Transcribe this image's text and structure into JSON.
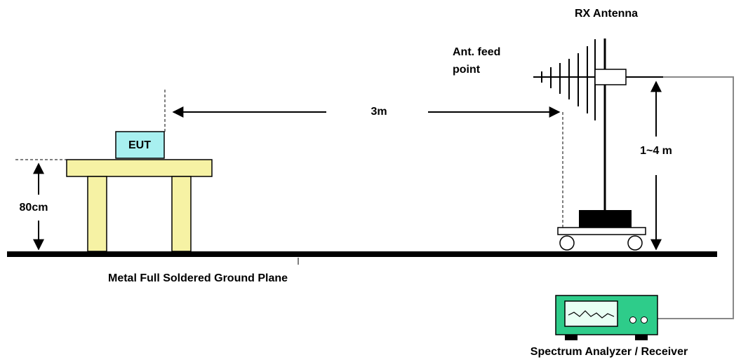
{
  "labels": {
    "rx_antenna": "RX Antenna",
    "feed_point_line1": "Ant. feed",
    "feed_point_line2": "point",
    "distance": "3m",
    "eut": "EUT",
    "antenna_height": "1~4 m",
    "table_height": "80cm",
    "ground_plane": "Metal Full Soldered Ground Plane",
    "analyzer": "Spectrum Analyzer / Receiver"
  }
}
